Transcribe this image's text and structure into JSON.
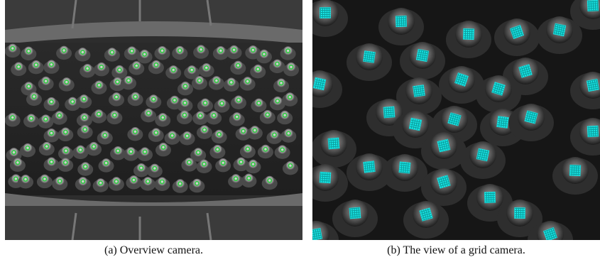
{
  "figure": {
    "panel_a": {
      "caption": "(a) Overview camera.",
      "marker_color": "#2ecc40",
      "background_color": "#3a3a3a"
    },
    "panel_b": {
      "caption": "(b) The view of a grid camera.",
      "marker_color": "#19e6e6",
      "background_color": "#141414"
    }
  }
}
